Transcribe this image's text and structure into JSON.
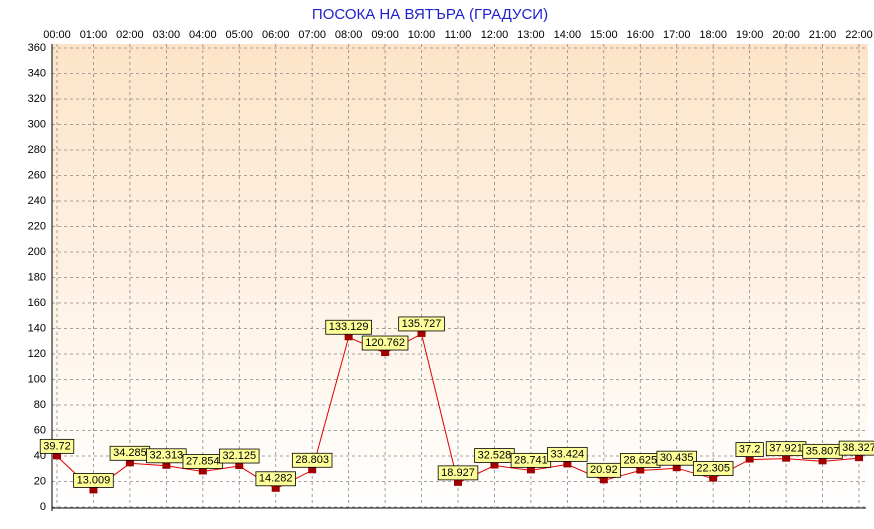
{
  "chart_data": {
    "type": "line",
    "title": "ПОСОКА НА ВЯТЪРА    (ГРАДУСИ)",
    "categories": [
      "00:00",
      "01:00",
      "02:00",
      "03:00",
      "04:00",
      "05:00",
      "06:00",
      "07:00",
      "08:00",
      "09:00",
      "10:00",
      "11:00",
      "12:00",
      "13:00",
      "14:00",
      "15:00",
      "16:00",
      "17:00",
      "18:00",
      "19:00",
      "20:00",
      "21:00",
      "22:00"
    ],
    "values": [
      39.72,
      13.009,
      34.285,
      32.313,
      27.854,
      32.125,
      14.282,
      28.803,
      133.129,
      120.762,
      135.727,
      18.927,
      32.528,
      28.741,
      33.424,
      20.92,
      28.625,
      30.435,
      22.305,
      37.2,
      37.921,
      35.807,
      38.327
    ],
    "color": "#e00000",
    "marker_color": "#a00000",
    "ylim": [
      0,
      360
    ],
    "yticks": [
      0,
      20,
      40,
      60,
      80,
      100,
      120,
      140,
      160,
      180,
      200,
      220,
      240,
      260,
      280,
      300,
      320,
      340,
      360
    ],
    "grid": true
  }
}
